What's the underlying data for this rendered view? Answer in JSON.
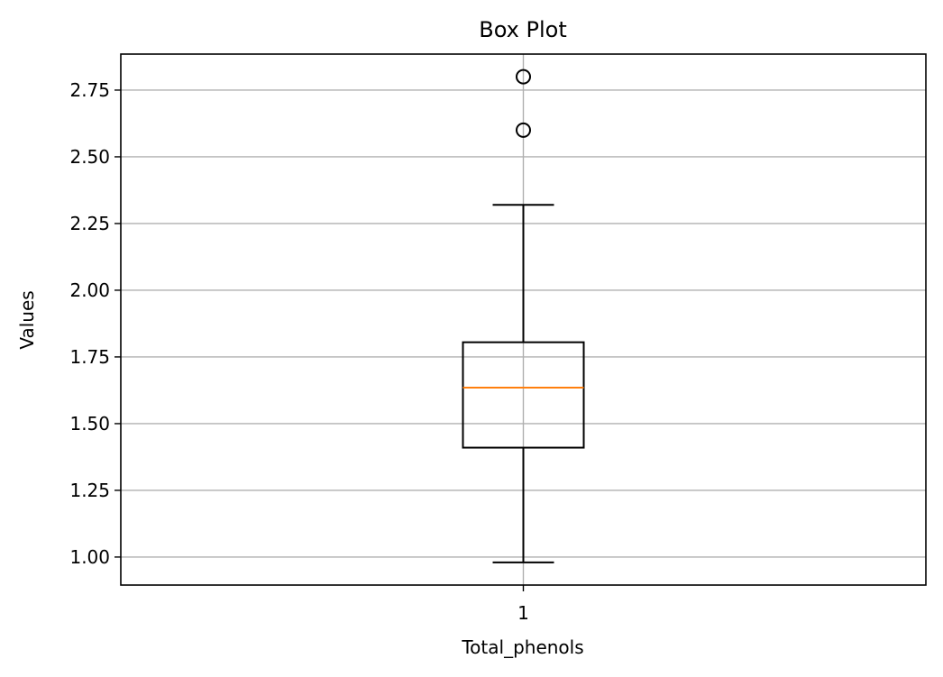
{
  "chart_data": {
    "type": "box",
    "title": "Box Plot",
    "xlabel": "Total_phenols",
    "ylabel": "Values",
    "categories": [
      "1"
    ],
    "boxes": [
      {
        "category": "1",
        "whisker_low": 0.98,
        "q1": 1.41,
        "median": 1.635,
        "q3": 1.805,
        "whisker_high": 2.32,
        "outliers": [
          2.6,
          2.8
        ]
      }
    ],
    "ylim": [
      0.895,
      2.885
    ],
    "yticks": [
      1.0,
      1.25,
      1.5,
      1.75,
      2.0,
      2.25,
      2.5,
      2.75
    ],
    "ytick_labels": [
      "1.00",
      "1.25",
      "1.50",
      "1.75",
      "2.00",
      "2.25",
      "2.50",
      "2.75"
    ],
    "grid": true,
    "colors": {
      "box": "#000000",
      "median": "#ff7f0e",
      "grid": "#b0b0b0"
    }
  }
}
